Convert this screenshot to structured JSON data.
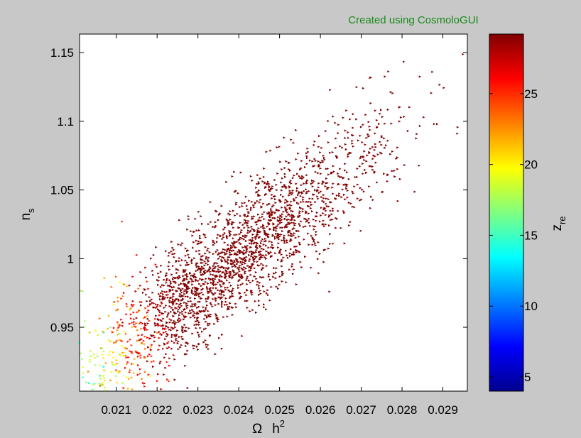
{
  "figure": {
    "background": "#c8c8c8",
    "credit_text": "Created using CosmoloGUI",
    "credit_color": "#1a8a1a"
  },
  "chart_data": {
    "type": "scatter",
    "title": "",
    "xlabel": "Ω",
    "xlabel_sup": "h",
    "xlabel_exp": "2",
    "ylabel": "n",
    "ylabel_sub": "s",
    "xlim": [
      0.0201,
      0.0296
    ],
    "ylim": [
      0.9035,
      1.1635
    ],
    "xticks": [
      0.021,
      0.022,
      0.023,
      0.024,
      0.025,
      0.026,
      0.027,
      0.028,
      0.029
    ],
    "xtick_labels": [
      "0.021",
      "0.022",
      "0.023",
      "0.024",
      "0.025",
      "0.026",
      "0.027",
      "0.028",
      "0.029"
    ],
    "yticks": [
      0.95,
      1.0,
      1.05,
      1.1,
      1.15
    ],
    "ytick_labels": [
      "0.95",
      "1",
      "1.05",
      "1.1",
      "1.15"
    ],
    "grid": false,
    "colorbar": {
      "label": "z",
      "label_sub": "re",
      "colormap": "jet",
      "range": [
        4,
        29.2
      ],
      "ticks": [
        10,
        15,
        20,
        25
      ],
      "tick_labels": [
        "10",
        "15",
        "20",
        "25"
      ],
      "min_tick": 5,
      "min_tick_label": "5"
    },
    "cloud": {
      "count": 2400,
      "x_mean": 0.0238,
      "x_sd": 0.0019,
      "y_slope": 23.0,
      "y_intercept": 0.4505,
      "y_noise": 0.022,
      "z_intercept": -147.5,
      "z_slope_x": 5750,
      "z_slope_y": 52,
      "z_noise": 2.3,
      "seed": 1337
    }
  }
}
